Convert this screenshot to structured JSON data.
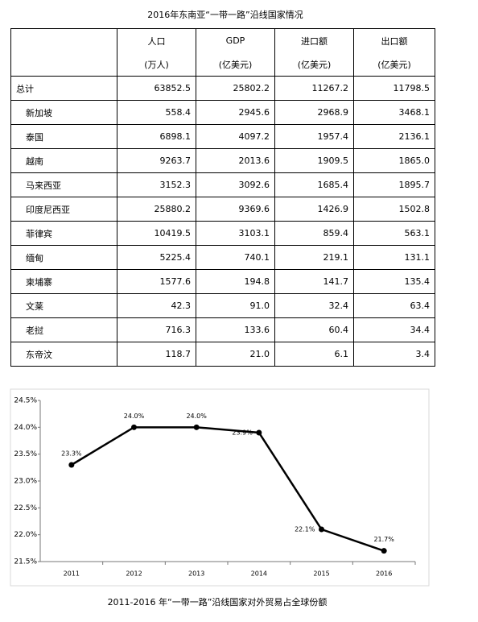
{
  "table": {
    "title": "2016年东南亚“一带一路”沿线国家情况",
    "columns": [
      {
        "name": "人口",
        "unit": "(万人)"
      },
      {
        "name": "GDP",
        "unit": "(亿美元)"
      },
      {
        "name": "进口额",
        "unit": "(亿美元)"
      },
      {
        "name": "出口额",
        "unit": "(亿美元)"
      }
    ],
    "rows": [
      [
        "总计",
        "63852.5",
        "25802.2",
        "11267.2",
        "11798.5"
      ],
      [
        "新加坡",
        "558.4",
        "2945.6",
        "2968.9",
        "3468.1"
      ],
      [
        "泰国",
        "6898.1",
        "4097.2",
        "1957.4",
        "2136.1"
      ],
      [
        "越南",
        "9263.7",
        "2013.6",
        "1909.5",
        "1865.0"
      ],
      [
        "马来西亚",
        "3152.3",
        "3092.6",
        "1685.4",
        "1895.7"
      ],
      [
        "印度尼西亚",
        "25880.2",
        "9369.6",
        "1426.9",
        "1502.8"
      ],
      [
        "菲律宾",
        "10419.5",
        "3103.1",
        "859.4",
        "563.1"
      ],
      [
        "缅甸",
        "5225.4",
        "740.1",
        "219.1",
        "131.1"
      ],
      [
        "柬埔寨",
        "1577.6",
        "194.8",
        "141.7",
        "135.4"
      ],
      [
        "文莱",
        "42.3",
        "91.0",
        "32.4",
        "63.4"
      ],
      [
        "老挝",
        "716.3",
        "133.6",
        "60.4",
        "34.4"
      ],
      [
        "东帝汶",
        "118.7",
        "21.0",
        "6.1",
        "3.4"
      ]
    ]
  },
  "chart_data": {
    "type": "line",
    "title": "2011-2016 年“一带一路”沿线国家对外贸易占全球份额",
    "categories": [
      "2011",
      "2012",
      "2013",
      "2014",
      "2015",
      "2016"
    ],
    "values": [
      23.3,
      24.0,
      24.0,
      23.9,
      22.1,
      21.7
    ],
    "value_labels": [
      "23.3%",
      "24.0%",
      "24.0%",
      "23.9%",
      "22.1%",
      "21.7%"
    ],
    "color": "#000000",
    "ylim": [
      21.5,
      24.5
    ],
    "yticks": [
      {
        "value": 21.5,
        "label": "21.5%"
      },
      {
        "value": 22.0,
        "label": "22.0%"
      },
      {
        "value": 22.5,
        "label": "22.5%"
      },
      {
        "value": 23.0,
        "label": "23.0%"
      },
      {
        "value": 23.5,
        "label": "23.5%"
      },
      {
        "value": 24.0,
        "label": "24.0%"
      },
      {
        "value": 24.5,
        "label": "24.5%"
      }
    ],
    "grid": false
  }
}
